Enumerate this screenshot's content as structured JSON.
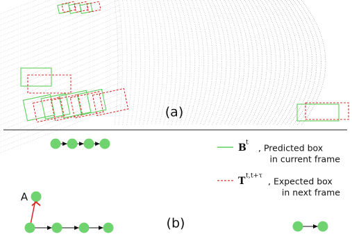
{
  "panel_a": {
    "label": "(a)"
  },
  "panel_b": {
    "label": "(b)",
    "node_label": "A"
  },
  "legend": [
    {
      "symbol": "B",
      "superscript": "t",
      "text_lines": [
        ", Predicted box",
        "in current frame"
      ]
    },
    {
      "symbol": "T",
      "superscript": "t,t+τ",
      "text_lines": [
        ", Expected box",
        "in next frame"
      ]
    }
  ]
}
